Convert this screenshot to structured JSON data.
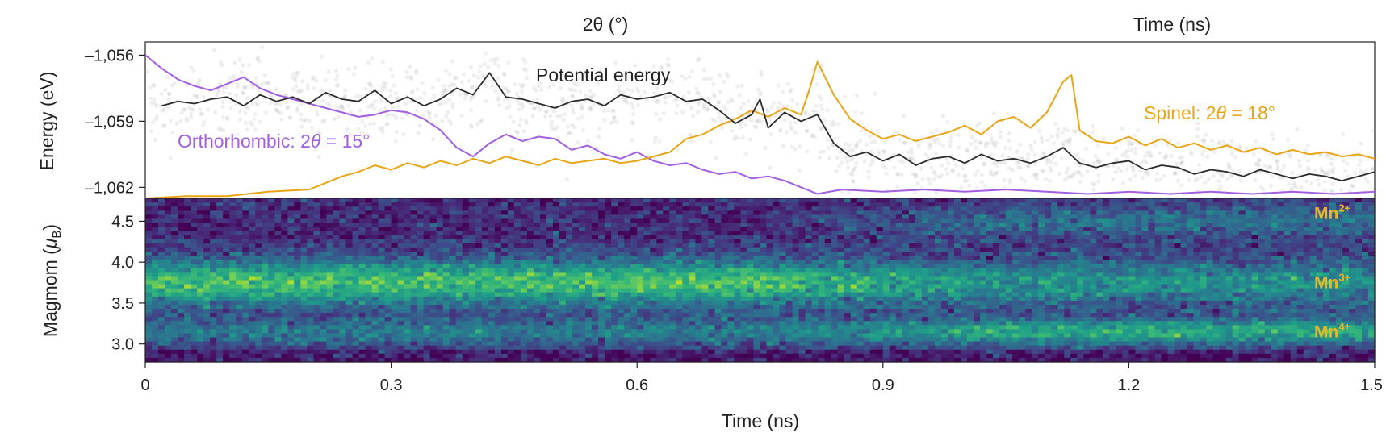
{
  "top_cut": {
    "left_xlabel": "2θ (°)",
    "right_xlabel": "Time (ns)"
  },
  "chart_data": [
    {
      "type": "line",
      "panel": "energy",
      "ylabel": "Energy (eV)",
      "yticks": [
        "–1,056",
        "–1,059",
        "–1,062"
      ],
      "ytick_values": [
        -1056,
        -1059,
        -1062
      ],
      "ylim": [
        -1062.5,
        -1055.4
      ],
      "xlim": [
        0,
        1.5
      ],
      "grid": false,
      "annotations": {
        "potential": "Potential energy",
        "ortho_prefix": "Orthorhombic: 2",
        "ortho_theta": "θ",
        "ortho_suffix": " = 15°",
        "spinel_prefix": "Spinel: 2",
        "spinel_theta": "θ",
        "spinel_suffix": " = 18°"
      },
      "series": [
        {
          "key": "potential",
          "color": "#2b2b2b",
          "x": [
            0.02,
            0.04,
            0.06,
            0.08,
            0.1,
            0.12,
            0.14,
            0.16,
            0.18,
            0.2,
            0.22,
            0.24,
            0.26,
            0.28,
            0.3,
            0.32,
            0.34,
            0.36,
            0.38,
            0.4,
            0.42,
            0.44,
            0.46,
            0.48,
            0.5,
            0.52,
            0.54,
            0.56,
            0.58,
            0.6,
            0.62,
            0.64,
            0.66,
            0.68,
            0.7,
            0.72,
            0.74,
            0.75,
            0.76,
            0.78,
            0.8,
            0.82,
            0.84,
            0.86,
            0.88,
            0.9,
            0.92,
            0.94,
            0.96,
            0.98,
            1.0,
            1.02,
            1.04,
            1.06,
            1.08,
            1.1,
            1.12,
            1.14,
            1.16,
            1.18,
            1.2,
            1.22,
            1.24,
            1.26,
            1.28,
            1.3,
            1.32,
            1.34,
            1.36,
            1.38,
            1.4,
            1.42,
            1.44,
            1.46,
            1.48,
            1.5
          ],
          "y": [
            -1058.3,
            -1058.1,
            -1058.2,
            -1058.0,
            -1057.9,
            -1058.3,
            -1057.8,
            -1058.1,
            -1057.9,
            -1058.2,
            -1057.7,
            -1058.0,
            -1058.1,
            -1057.6,
            -1058.2,
            -1057.9,
            -1058.3,
            -1058.0,
            -1057.5,
            -1057.8,
            -1056.8,
            -1057.9,
            -1058.0,
            -1058.2,
            -1058.4,
            -1058.1,
            -1058.0,
            -1058.3,
            -1057.8,
            -1058.0,
            -1057.9,
            -1057.7,
            -1058.1,
            -1058.0,
            -1058.5,
            -1059.1,
            -1058.7,
            -1058.0,
            -1059.3,
            -1058.6,
            -1059.0,
            -1058.7,
            -1060.0,
            -1060.6,
            -1060.4,
            -1060.8,
            -1060.5,
            -1061.0,
            -1060.7,
            -1060.6,
            -1060.9,
            -1060.5,
            -1060.8,
            -1060.7,
            -1060.9,
            -1060.6,
            -1060.2,
            -1060.9,
            -1061.1,
            -1060.9,
            -1060.8,
            -1061.2,
            -1061.0,
            -1061.1,
            -1061.4,
            -1061.2,
            -1061.3,
            -1061.5,
            -1061.2,
            -1061.4,
            -1061.6,
            -1061.4,
            -1061.5,
            -1061.7,
            -1061.5,
            -1061.3
          ]
        },
        {
          "key": "orthorhombic",
          "color": "#a25fe0",
          "x": [
            0.0,
            0.02,
            0.04,
            0.06,
            0.08,
            0.1,
            0.12,
            0.14,
            0.16,
            0.18,
            0.2,
            0.22,
            0.24,
            0.26,
            0.28,
            0.3,
            0.32,
            0.34,
            0.36,
            0.38,
            0.4,
            0.42,
            0.44,
            0.46,
            0.48,
            0.5,
            0.52,
            0.54,
            0.56,
            0.58,
            0.6,
            0.62,
            0.64,
            0.66,
            0.68,
            0.7,
            0.72,
            0.74,
            0.76,
            0.78,
            0.8,
            0.82,
            0.85,
            0.9,
            0.95,
            1.0,
            1.05,
            1.1,
            1.15,
            1.2,
            1.25,
            1.3,
            1.35,
            1.4,
            1.45,
            1.5
          ],
          "y": [
            -1056.0,
            -1056.6,
            -1057.1,
            -1057.4,
            -1057.6,
            -1057.3,
            -1057.0,
            -1057.5,
            -1057.8,
            -1058.0,
            -1058.2,
            -1058.4,
            -1058.6,
            -1058.8,
            -1058.7,
            -1058.5,
            -1058.6,
            -1058.9,
            -1059.4,
            -1060.2,
            -1060.6,
            -1060.0,
            -1059.6,
            -1059.9,
            -1059.7,
            -1059.8,
            -1060.3,
            -1060.1,
            -1060.5,
            -1060.7,
            -1060.4,
            -1060.8,
            -1061.0,
            -1060.9,
            -1061.2,
            -1061.4,
            -1061.3,
            -1061.6,
            -1061.5,
            -1061.7,
            -1062.0,
            -1062.3,
            -1062.1,
            -1062.2,
            -1062.1,
            -1062.2,
            -1062.1,
            -1062.2,
            -1062.3,
            -1062.2,
            -1062.3,
            -1062.2,
            -1062.3,
            -1062.2,
            -1062.3,
            -1062.2
          ]
        },
        {
          "key": "spinel",
          "color": "#e8a515",
          "x": [
            0.0,
            0.05,
            0.1,
            0.15,
            0.2,
            0.22,
            0.24,
            0.26,
            0.28,
            0.3,
            0.32,
            0.34,
            0.36,
            0.38,
            0.4,
            0.42,
            0.44,
            0.46,
            0.48,
            0.5,
            0.52,
            0.54,
            0.56,
            0.58,
            0.6,
            0.62,
            0.64,
            0.66,
            0.68,
            0.7,
            0.72,
            0.74,
            0.76,
            0.78,
            0.8,
            0.81,
            0.82,
            0.84,
            0.86,
            0.88,
            0.9,
            0.92,
            0.94,
            0.96,
            0.98,
            1.0,
            1.02,
            1.04,
            1.06,
            1.08,
            1.1,
            1.12,
            1.13,
            1.14,
            1.16,
            1.18,
            1.2,
            1.22,
            1.24,
            1.26,
            1.28,
            1.3,
            1.32,
            1.34,
            1.36,
            1.38,
            1.4,
            1.42,
            1.44,
            1.46,
            1.48,
            1.5
          ],
          "y": [
            -1062.5,
            -1062.4,
            -1062.4,
            -1062.2,
            -1062.1,
            -1061.8,
            -1061.5,
            -1061.3,
            -1061.0,
            -1061.2,
            -1060.9,
            -1061.1,
            -1060.8,
            -1061.0,
            -1060.7,
            -1060.9,
            -1060.6,
            -1060.8,
            -1061.0,
            -1060.7,
            -1060.9,
            -1060.8,
            -1060.7,
            -1060.9,
            -1060.8,
            -1060.6,
            -1060.4,
            -1059.8,
            -1059.6,
            -1059.2,
            -1058.9,
            -1058.5,
            -1058.8,
            -1058.4,
            -1058.7,
            -1057.6,
            -1056.3,
            -1057.8,
            -1058.9,
            -1059.4,
            -1059.8,
            -1059.6,
            -1059.9,
            -1059.7,
            -1059.5,
            -1059.2,
            -1059.6,
            -1059.0,
            -1058.8,
            -1059.3,
            -1058.6,
            -1057.2,
            -1056.9,
            -1059.4,
            -1059.9,
            -1060.0,
            -1059.7,
            -1060.1,
            -1059.8,
            -1060.2,
            -1060.0,
            -1060.3,
            -1060.1,
            -1060.4,
            -1060.2,
            -1060.5,
            -1060.3,
            -1060.5,
            -1060.4,
            -1060.6,
            -1060.5,
            -1060.7
          ]
        }
      ]
    },
    {
      "type": "heatmap",
      "panel": "magmom",
      "ylabel_main": "Magmom (",
      "ylabel_mu": "μ",
      "ylabel_sub": "B",
      "ylabel_close": ")",
      "yticks": [
        "4.5",
        "4.0",
        "3.5",
        "3.0"
      ],
      "ytick_values": [
        4.5,
        4.0,
        3.5,
        3.0
      ],
      "ylim": [
        2.78,
        4.78
      ],
      "xlim": [
        0,
        1.5
      ],
      "xticks": [
        "0",
        "0.3",
        "0.6",
        "0.9",
        "1.2",
        "1.5"
      ],
      "xtick_values": [
        0,
        0.3,
        0.6,
        0.9,
        1.2,
        1.5
      ],
      "xlabel": "Time (ns)",
      "colormap": "viridis",
      "grid": false,
      "bands": [
        {
          "label": "Mn",
          "sup": "2+",
          "center": 4.6
        },
        {
          "label": "Mn",
          "sup": "3+",
          "center": 3.75
        },
        {
          "label": "Mn",
          "sup": "4+",
          "center": 3.15
        }
      ],
      "ion_color": "#f2b41b"
    }
  ]
}
